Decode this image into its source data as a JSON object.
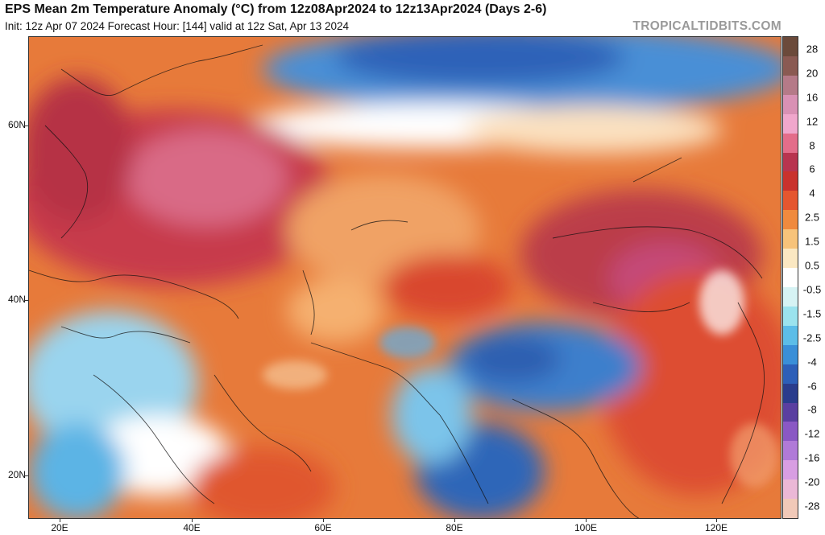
{
  "header": {
    "title": "EPS Mean 2m Temperature Anomaly (°C) from 12z08Apr2024 to 12z13Apr2024 (Days 2-6)",
    "subtitle": "Init: 12z Apr 07 2024   Forecast Hour: [144]   valid at 12z Sat, Apr 13 2024",
    "watermark": "TROPICALTIDBITS.COM"
  },
  "map": {
    "lat_labels": [
      "60N",
      "40N",
      "20N"
    ],
    "lon_labels": [
      "20E",
      "40E",
      "60E",
      "80E",
      "100E",
      "120E"
    ]
  },
  "colorbar": {
    "labels": [
      "28",
      "20",
      "16",
      "12",
      "8",
      "6",
      "4",
      "2.5",
      "1.5",
      "0.5",
      "-0.5",
      "-1.5",
      "-2.5",
      "-4",
      "-6",
      "-8",
      "-12",
      "-16",
      "-20",
      "-28"
    ],
    "colors": [
      "#6b4a3a",
      "#8a5a52",
      "#b57a88",
      "#d991b4",
      "#f0a7cc",
      "#e36d8a",
      "#b8344f",
      "#c9322d",
      "#e5562f",
      "#f08a3e",
      "#f7c37a",
      "#fbe8c2",
      "#ffffff",
      "#d6f3f4",
      "#9be3ee",
      "#5cbde8",
      "#3a8fd8",
      "#2d5fb8",
      "#2a3c8c",
      "#5a3fa0",
      "#8a58c4",
      "#b07ad8",
      "#d89ee2",
      "#ebb8d6",
      "#f1c9b8"
    ]
  }
}
